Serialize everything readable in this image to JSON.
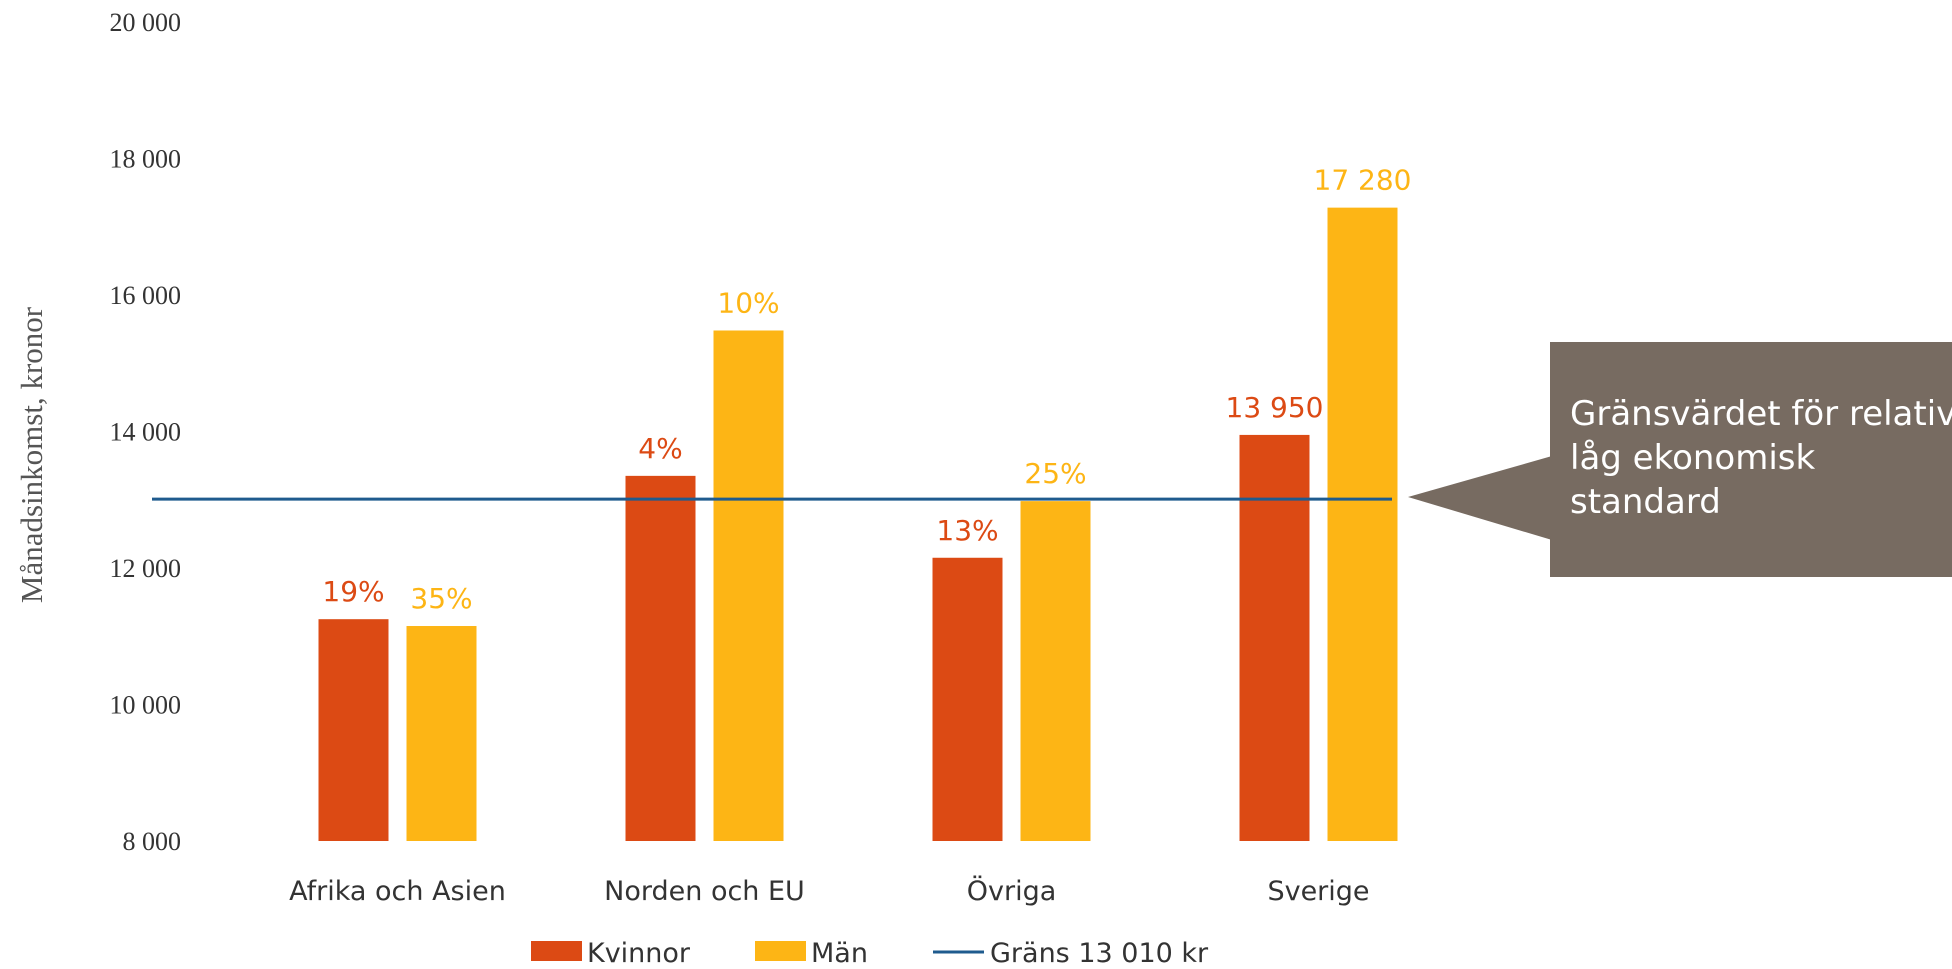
{
  "chart_data": {
    "type": "bar",
    "ylabel": "Månadsinkomst,  kronor",
    "xlabel": "",
    "ylim": [
      8000,
      20000
    ],
    "yticks": [
      8000,
      10000,
      12000,
      14000,
      16000,
      18000,
      20000
    ],
    "ytick_labels": [
      "8 000",
      "10 000",
      "12 000",
      "14 000",
      "16 000",
      "18 000",
      "20 000"
    ],
    "categories": [
      "Afrika och Asien",
      "Norden och EU",
      "Övriga",
      "Sverige"
    ],
    "series": [
      {
        "name": "Kvinnor",
        "color": "#DC4A14",
        "values": [
          11250,
          13350,
          12150,
          13950
        ],
        "labels": [
          "19%",
          "4%",
          "13%",
          "13 950"
        ]
      },
      {
        "name": "Män",
        "color": "#FDB515",
        "values": [
          11150,
          15480,
          12980,
          17280
        ],
        "labels": [
          "35%",
          "10%",
          "25%",
          "17 280"
        ]
      }
    ],
    "reference_line": {
      "name": "Gräns 13 010 kr",
      "value": 13010,
      "color": "#1F5B8E"
    },
    "annotation": {
      "lines": [
        "Gränsvärdet för relativ",
        "låg ekonomisk",
        "standard"
      ],
      "color": "#776B61"
    },
    "grid": false,
    "legend_position": "bottom"
  }
}
